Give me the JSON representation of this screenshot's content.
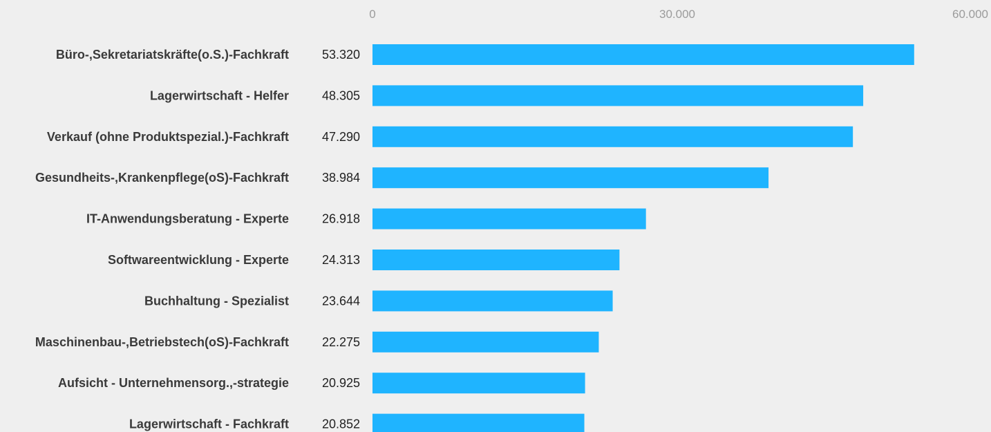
{
  "chart_data": {
    "type": "bar",
    "orientation": "horizontal",
    "categories": [
      "Büro-,Sekretariatskräfte(o.S.)-Fachkraft",
      "Lagerwirtschaft - Helfer",
      "Verkauf (ohne Produktspezial.)-Fachkraft",
      "Gesundheits-,Krankenpflege(oS)-Fachkraft",
      "IT-Anwendungsberatung - Experte",
      "Softwareentwicklung - Experte",
      "Buchhaltung - Spezialist",
      "Maschinenbau-,Betriebstech(oS)-Fachkraft",
      "Aufsicht - Unternehmensorg.,-strategie",
      "Lagerwirtschaft - Fachkraft"
    ],
    "values": [
      53320,
      48305,
      47290,
      38984,
      26918,
      24313,
      23644,
      22275,
      20925,
      20852
    ],
    "value_labels": [
      "53.320",
      "48.305",
      "47.290",
      "38.984",
      "26.918",
      "24.313",
      "23.644",
      "22.275",
      "20.925",
      "20.852"
    ],
    "xlim": [
      0,
      60000
    ],
    "ticks": [
      {
        "value": 0,
        "label": "0"
      },
      {
        "value": 30000,
        "label": "30.000"
      },
      {
        "value": 60000,
        "label": "60.000"
      }
    ],
    "title": "",
    "xlabel": "",
    "ylabel": "",
    "grid": false,
    "legend": "none",
    "colors": {
      "bar": "#1fb4ff",
      "background": "#efefef",
      "category_text": "#3a3a3a",
      "value_text": "#222222",
      "tick_text": "#9b9b9b"
    }
  }
}
